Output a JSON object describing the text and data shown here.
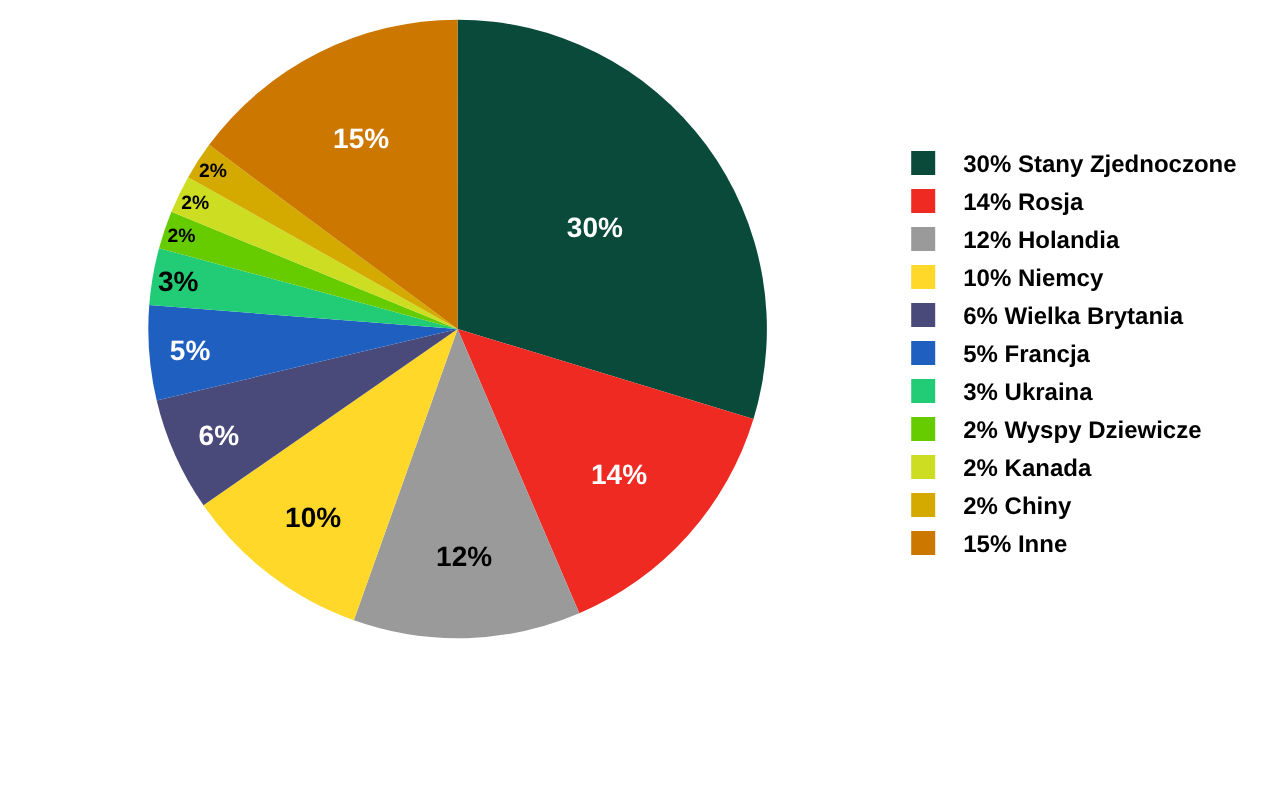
{
  "chart_data": {
    "type": "pie",
    "categories": [
      "30% Stany Zjednoczone",
      "14% Rosja",
      "12% Holandia",
      "10% Niemcy",
      "6% Wielka Brytania",
      "5% Francja",
      "3% Ukraina",
      "2% Wyspy Dziewicze",
      "2% Kanada",
      "2% Chiny",
      "15% Inne"
    ],
    "values": [
      30,
      14,
      12,
      10,
      6,
      5,
      3,
      2,
      2,
      2,
      15
    ],
    "value_labels": [
      "30%",
      "14%",
      "12%",
      "10%",
      "6%",
      "5%",
      "3%",
      "2%",
      "2%",
      "2%",
      "15%"
    ],
    "colors": [
      "#0a4a3a",
      "#ee2a22",
      "#9a9a9a",
      "#ffd82a",
      "#4a4a7a",
      "#1e5fc0",
      "#22cc77",
      "#66cc00",
      "#ccdd22",
      "#d4aa00",
      "#cc7700"
    ],
    "legend": "right"
  }
}
